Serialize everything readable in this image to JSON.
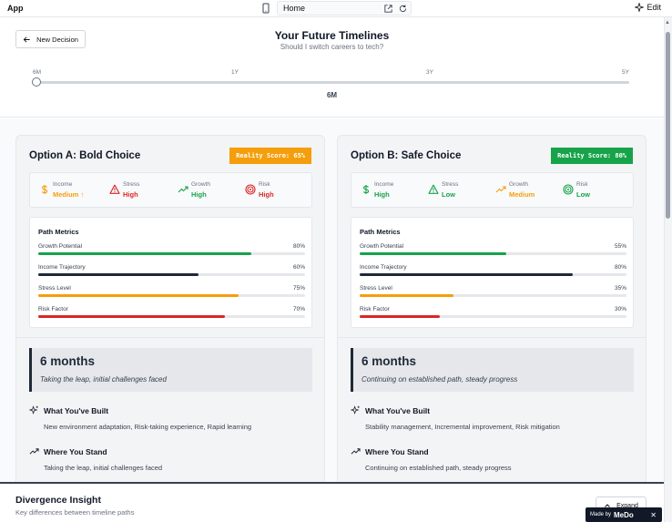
{
  "appbar": {
    "title": "App",
    "address": "Home",
    "edit_label": "Edit"
  },
  "header": {
    "back_button_label": "New Decision",
    "title": "Your Future Timelines",
    "subtitle": "Should I switch careers to tech?",
    "timeline_ticks": [
      "6M",
      "1Y",
      "3Y",
      "5Y"
    ],
    "selected": "6M",
    "selected_index": 0
  },
  "options": [
    {
      "title": "Option A: Bold Choice",
      "score": "Reality Score: 65%",
      "score_color": "#f59e0b",
      "stats": [
        {
          "label": "Income",
          "value": "Medium ↑",
          "color": "#f59e0b",
          "icon": "dollar-icon"
        },
        {
          "label": "Stress",
          "value": "High",
          "color": "#dc2626",
          "icon": "warning-icon"
        },
        {
          "label": "Growth",
          "value": "High",
          "color": "#16a34a",
          "icon": "trending-up-icon"
        },
        {
          "label": "Risk",
          "value": "High",
          "color": "#dc2626",
          "icon": "target-icon"
        }
      ],
      "metrics_title": "Path Metrics",
      "metrics": [
        {
          "label": "Growth Potential",
          "value": "80%",
          "percent": 80,
          "color": "#16a34a"
        },
        {
          "label": "Income Trajectory",
          "value": "60%",
          "percent": 60,
          "color": "#1f2937"
        },
        {
          "label": "Stress Level",
          "value": "75%",
          "percent": 75,
          "color": "#f59e0b"
        },
        {
          "label": "Risk Factor",
          "value": "70%",
          "percent": 70,
          "color": "#dc2626"
        }
      ],
      "period_title": "6 months",
      "period_desc": "Taking the leap, initial challenges faced",
      "built_heading": "What You've Built",
      "built_text": "New environment adaptation, Risk-taking experience, Rapid learning",
      "stand_heading": "Where You Stand",
      "stand_text": "Taking the leap, initial challenges faced"
    },
    {
      "title": "Option B: Safe Choice",
      "score": "Reality Score: 80%",
      "score_color": "#16a34a",
      "stats": [
        {
          "label": "Income",
          "value": "High",
          "color": "#16a34a",
          "icon": "dollar-icon"
        },
        {
          "label": "Stress",
          "value": "Low",
          "color": "#16a34a",
          "icon": "warning-icon"
        },
        {
          "label": "Growth",
          "value": "Medium",
          "color": "#f59e0b",
          "icon": "trending-up-icon"
        },
        {
          "label": "Risk",
          "value": "Low",
          "color": "#16a34a",
          "icon": "target-icon"
        }
      ],
      "metrics_title": "Path Metrics",
      "metrics": [
        {
          "label": "Growth Potential",
          "value": "55%",
          "percent": 55,
          "color": "#16a34a"
        },
        {
          "label": "Income Trajectory",
          "value": "80%",
          "percent": 80,
          "color": "#1f2937"
        },
        {
          "label": "Stress Level",
          "value": "35%",
          "percent": 35,
          "color": "#f59e0b"
        },
        {
          "label": "Risk Factor",
          "value": "30%",
          "percent": 30,
          "color": "#dc2626"
        }
      ],
      "period_title": "6 months",
      "period_desc": "Continuing on established path, steady progress",
      "built_heading": "What You've Built",
      "built_text": "Stability management, Incremental improvement, Risk mitigation",
      "stand_heading": "Where You Stand",
      "stand_text": "Continuing on established path, steady progress"
    }
  ],
  "footer": {
    "title": "Divergence Insight",
    "subtitle": "Key differences between timeline paths",
    "expand_label": "Expand"
  },
  "badge": {
    "made_by": "Made by",
    "brand": "MeDo"
  }
}
